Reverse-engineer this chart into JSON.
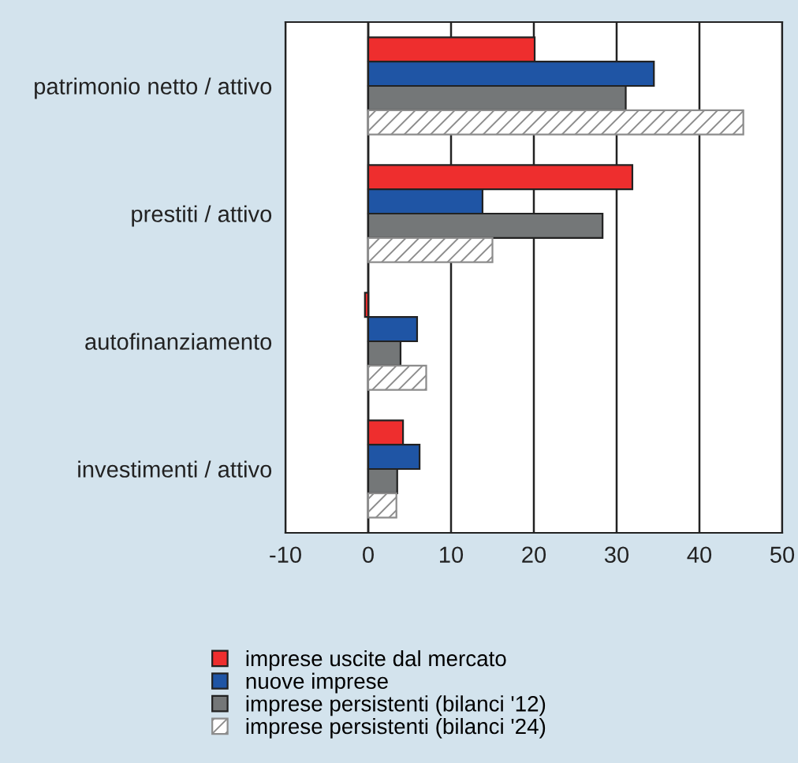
{
  "chart_data": {
    "type": "bar",
    "orientation": "horizontal",
    "categories": [
      "patrimonio netto / attivo",
      "prestiti / attivo",
      "autofinanziamento",
      "investimenti / attivo"
    ],
    "series": [
      {
        "name": "imprese uscite dal mercato",
        "color": "#ee2e2e",
        "values": [
          20.1,
          31.9,
          -0.4,
          4.2
        ]
      },
      {
        "name": "nuove imprese",
        "color": "#1f55a5",
        "values": [
          34.5,
          13.8,
          5.9,
          6.2
        ]
      },
      {
        "name": "imprese persistenti (bilanci '12)",
        "color": "#747778",
        "values": [
          31.1,
          28.3,
          3.9,
          3.5
        ]
      },
      {
        "name": "imprese persistenti (bilanci '24)",
        "color": "#8c8c8c",
        "values": [
          45.3,
          15.0,
          7.0,
          3.4
        ]
      }
    ],
    "xlim": [
      -10,
      50
    ],
    "xticks": [
      -10,
      0,
      10,
      20,
      30,
      40,
      50
    ],
    "grid": "x",
    "legend": "bottom"
  }
}
